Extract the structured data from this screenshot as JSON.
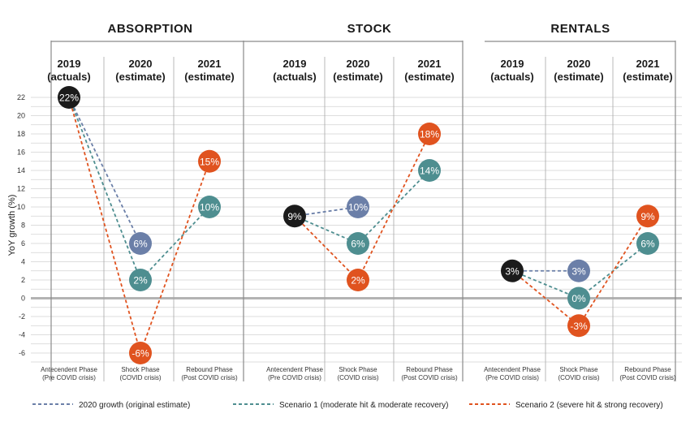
{
  "chart_data": {
    "type": "line",
    "ylabel": "YoY growth (%)",
    "ylim": [
      -6,
      22
    ],
    "y_ticks": [
      22,
      20,
      18,
      16,
      14,
      12,
      10,
      8,
      6,
      4,
      2,
      0,
      -2,
      -4,
      -6
    ],
    "grid": true,
    "legend_position": "bottom",
    "colors": {
      "original": "#6b7fa8",
      "scenario1": "#4e8e90",
      "scenario2": "#e0531f",
      "actuals": "#1b1b1b"
    },
    "legend": [
      {
        "key": "original",
        "label": "2020 growth (original estimate)"
      },
      {
        "key": "scenario1",
        "label": "Scenario 1 (moderate hit & moderate recovery)"
      },
      {
        "key": "scenario2",
        "label": "Scenario 2 (severe hit & strong recovery)"
      }
    ],
    "panels": [
      {
        "title": "ABSORPTION",
        "columns": [
          {
            "year": "2019",
            "sub": "(actuals)",
            "phase": "Antecendent Phase",
            "phase_sub": "(Pre COVID crisis)"
          },
          {
            "year": "2020",
            "sub": "(estimate)",
            "phase": "Shock Phase",
            "phase_sub": "(COVID crisis)"
          },
          {
            "year": "2021",
            "sub": "(estimate)",
            "phase": "Rebound Phase",
            "phase_sub": "(Post COVID crisis)"
          }
        ],
        "actual_2019": {
          "value": 22,
          "label": "22%"
        },
        "original_2020": {
          "value": 6,
          "label": "6%"
        },
        "series": [
          {
            "key": "scenario1",
            "values": [
              22,
              2,
              10
            ],
            "labels": [
              "22%",
              "2%",
              "10%"
            ]
          },
          {
            "key": "scenario2",
            "values": [
              22,
              -6,
              15
            ],
            "labels": [
              "22%",
              "-6%",
              "15%"
            ]
          }
        ]
      },
      {
        "title": "STOCK",
        "columns": [
          {
            "year": "2019",
            "sub": "(actuals)",
            "phase": "Antecendent Phase",
            "phase_sub": "(Pre COVID crisis)"
          },
          {
            "year": "2020",
            "sub": "(estimate)",
            "phase": "Shock Phase",
            "phase_sub": "(COVID crisis)"
          },
          {
            "year": "2021",
            "sub": "(estimate)",
            "phase": "Rebound Phase",
            "phase_sub": "(Post COVID crisis)"
          }
        ],
        "actual_2019": {
          "value": 9,
          "label": "9%"
        },
        "original_2020": {
          "value": 10,
          "label": "10%"
        },
        "series": [
          {
            "key": "scenario1",
            "values": [
              9,
              6,
              14
            ],
            "labels": [
              "9%",
              "6%",
              "14%"
            ]
          },
          {
            "key": "scenario2",
            "values": [
              9,
              2,
              18
            ],
            "labels": [
              "9%",
              "2%",
              "18%"
            ]
          }
        ]
      },
      {
        "title": "RENTALS",
        "columns": [
          {
            "year": "2019",
            "sub": "(actuals)",
            "phase": "Antecendent Phase",
            "phase_sub": "(Pre COVID crisis)"
          },
          {
            "year": "2020",
            "sub": "(estimate)",
            "phase": "Shock Phase",
            "phase_sub": "(COVID crisis)"
          },
          {
            "year": "2021",
            "sub": "(estimate)",
            "phase": "Rebound Phase",
            "phase_sub": "(Post COVID crisis)"
          }
        ],
        "actual_2019": {
          "value": 3,
          "label": "3%"
        },
        "original_2020": {
          "value": 3,
          "label": "3%"
        },
        "series": [
          {
            "key": "scenario1",
            "values": [
              3,
              0,
              6
            ],
            "labels": [
              "3%",
              "0%",
              "6%"
            ]
          },
          {
            "key": "scenario2",
            "values": [
              3,
              -3,
              9
            ],
            "labels": [
              "3%",
              "-3%",
              "9%"
            ]
          }
        ]
      }
    ]
  }
}
